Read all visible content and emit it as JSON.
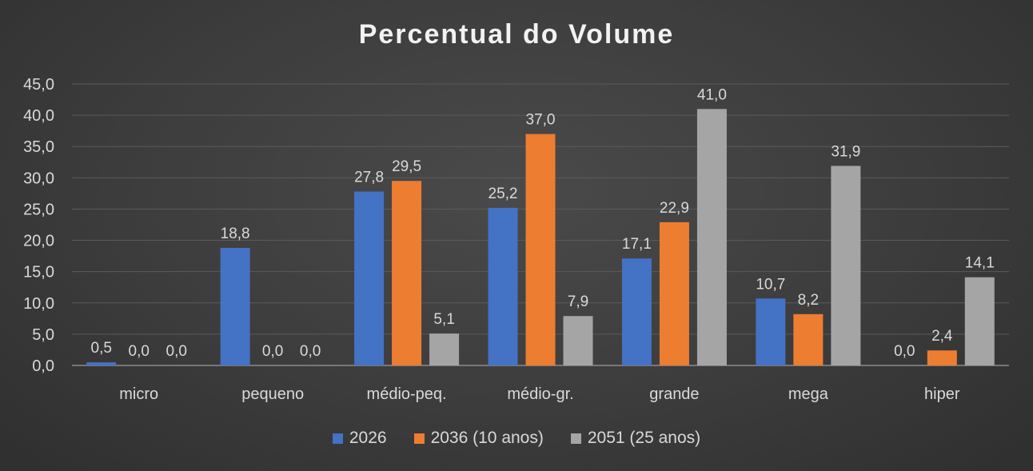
{
  "chart_data": {
    "type": "bar",
    "title": "Percentual do Volume",
    "categories": [
      "micro",
      "pequeno",
      "médio-peq.",
      "médio-gr.",
      "grande",
      "mega",
      "hiper"
    ],
    "series": [
      {
        "name": "2026",
        "values": [
          0.5,
          18.8,
          27.8,
          25.2,
          17.1,
          10.7,
          0.0
        ],
        "color": "#4472c4"
      },
      {
        "name": "2036 (10 anos)",
        "values": [
          0.0,
          0.0,
          29.5,
          37.0,
          22.9,
          8.2,
          2.4
        ],
        "color": "#ed7d31"
      },
      {
        "name": "2051 (25 anos)",
        "values": [
          0.0,
          0.0,
          5.1,
          7.9,
          41.0,
          31.9,
          14.1
        ],
        "color": "#a5a5a5"
      }
    ],
    "ylim": [
      0,
      45
    ],
    "yticks": [
      "0,0",
      "5,0",
      "10,0",
      "15,0",
      "20,0",
      "25,0",
      "30,0",
      "35,0",
      "40,0",
      "45,0"
    ],
    "data_labels": [
      [
        "0,5",
        "18,8",
        "27,8",
        "25,2",
        "17,1",
        "10,7",
        "0,0"
      ],
      [
        "0,0",
        "0,0",
        "29,5",
        "37,0",
        "22,9",
        "8,2",
        "2,4"
      ],
      [
        "0,0",
        "0,0",
        "5,1",
        "7,9",
        "41,0",
        "31,9",
        "14,1"
      ]
    ],
    "grid": true,
    "legend_position": "bottom"
  }
}
